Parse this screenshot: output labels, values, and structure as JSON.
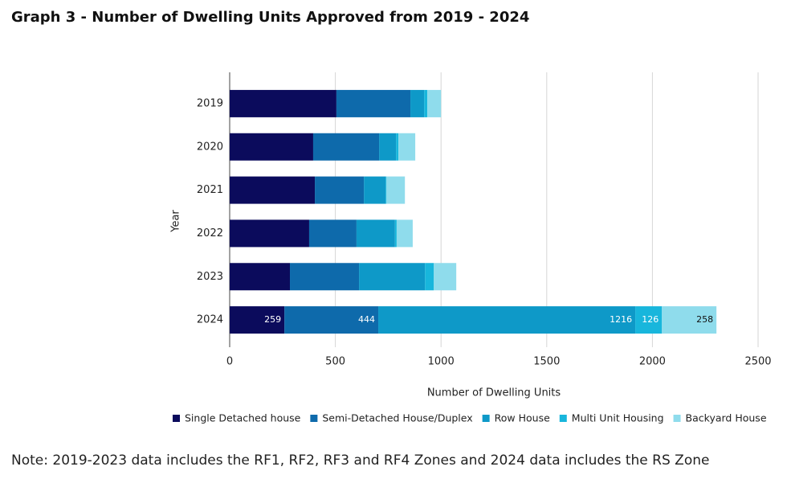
{
  "chart_data": {
    "type": "stacked-barh",
    "title": "Graph 3 - Number of Dwelling Units Approved from 2019 - 2024",
    "xlabel": "Number of Dwelling Units",
    "ylabel": "Year",
    "categories": [
      "2019",
      "2020",
      "2021",
      "2022",
      "2023",
      "2024"
    ],
    "series": [
      {
        "name": "Single Detached house",
        "color": "#0b0b5c",
        "values": [
          505,
          395,
          403,
          376,
          285,
          259
        ]
      },
      {
        "name": "Semi-Detached House/Duplex",
        "color": "#0e6aab",
        "values": [
          350,
          312,
          232,
          224,
          327,
          444
        ]
      },
      {
        "name": "Row House",
        "color": "#0e99c8",
        "values": [
          65,
          80,
          103,
          182,
          312,
          1216
        ]
      },
      {
        "name": "Multi Unit Housing",
        "color": "#18b6dc",
        "values": [
          15,
          11,
          4,
          8,
          42,
          126
        ]
      },
      {
        "name": "Backyard House",
        "color": "#8fdcec",
        "values": [
          65,
          80,
          87,
          76,
          106,
          258
        ]
      }
    ],
    "data_labels_for": "2024",
    "xlim": [
      0,
      2500
    ],
    "xticks": [
      0,
      500,
      1000,
      1500,
      2000,
      2500
    ],
    "grid": true,
    "legend": "bottom",
    "note": "Note: 2019-2023 data includes the RF1, RF2, RF3 and RF4 Zones and 2024 data includes the RS Zone"
  }
}
